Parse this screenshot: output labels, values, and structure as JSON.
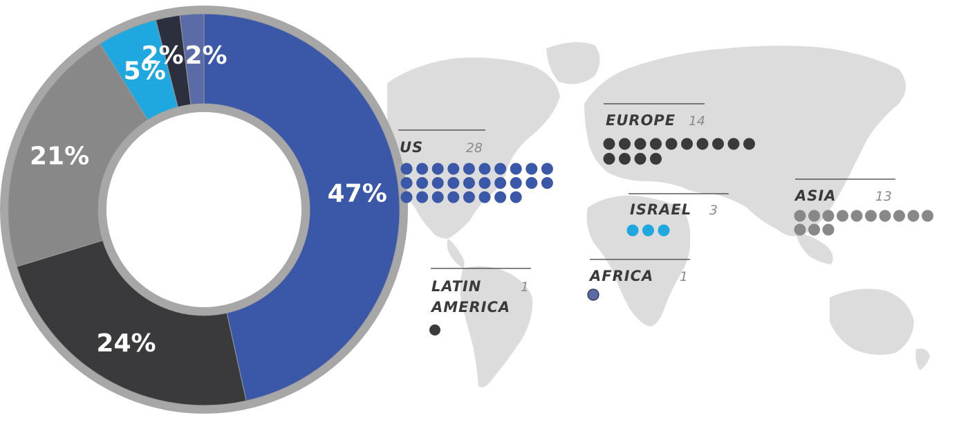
{
  "chart_data": [
    {
      "type": "pie",
      "variant": "donut",
      "slices": [
        {
          "label": "47%",
          "value": 47,
          "color": "#3a57a8"
        },
        {
          "label": "24%",
          "value": 24,
          "color": "#3a3a3c"
        },
        {
          "label": "21%",
          "value": 21,
          "color": "#888888"
        },
        {
          "label": "5%",
          "value": 5,
          "color": "#1fa8e0"
        },
        {
          "label": "2%",
          "value": 2,
          "color": "#2c2f3d"
        },
        {
          "label": "2%",
          "value": 2,
          "color": "#5a6ba8"
        }
      ]
    },
    {
      "type": "dot-map",
      "background": "world-map",
      "regions": [
        {
          "name": "US",
          "count": 28,
          "count_label": "28",
          "color": "#3a57a8"
        },
        {
          "name": "EUROPE",
          "count": 14,
          "count_label": "14",
          "color": "#3a3a3c"
        },
        {
          "name": "ISRAEL",
          "count": 3,
          "count_label": "3",
          "color": "#1fa8e0"
        },
        {
          "name": "ASIA",
          "count": 13,
          "count_label": "13",
          "color": "#888888"
        },
        {
          "name": "LATIN AMERICA",
          "name_lines": [
            "LATIN",
            "AMERICA"
          ],
          "count": 1,
          "count_label": "1",
          "color": "#3a3a3c"
        },
        {
          "name": "AFRICA",
          "count": 1,
          "count_label": "1",
          "color": "#5a6ba8"
        }
      ]
    }
  ]
}
